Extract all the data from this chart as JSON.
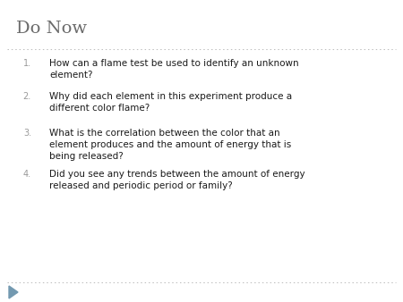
{
  "title": "Do Now",
  "title_color": "#6b6b6b",
  "title_fontsize": 14,
  "background_color": "#ffffff",
  "items": [
    "How can a flame test be used to identify an unknown\nelement?",
    "Why did each element in this experiment produce a\ndifferent color flame?",
    "What is the correlation between the color that an\nelement produces and the amount of energy that is\nbeing released?",
    "Did you see any trends between the amount of energy\nreleased and periodic period or family?"
  ],
  "item_numbers": [
    "1.",
    "2.",
    "3.",
    "4."
  ],
  "item_color": "#1a1a1a",
  "item_fontsize": 7.5,
  "number_color": "#999999",
  "number_fontsize": 7.0,
  "dotted_line_color": "#bbbbbb",
  "arrow_color": "#7399b0",
  "figsize": [
    4.5,
    3.38
  ],
  "dpi": 100
}
